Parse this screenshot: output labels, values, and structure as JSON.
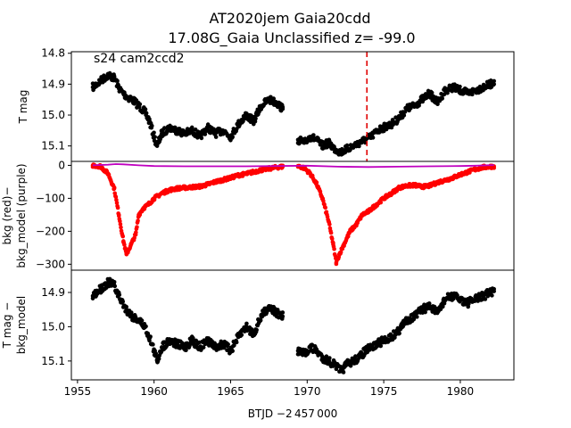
{
  "title_line1": "AT2020jem  Gaia20cdd",
  "title_line2": "17.08G_Gaia Unclassified z= -99.0",
  "xlabel": "BTJD −2 457 000",
  "colors": {
    "points": "#000000",
    "bkg": "#ff0000",
    "bkg_model": "#bf00bf",
    "marker_line": "#e00000"
  },
  "chart_data": [
    {
      "type": "scatter",
      "panel": "top",
      "annotation": "s24 cam2ccd2",
      "ylabel": "T mag",
      "y_inverted": true,
      "xlim": [
        1954.6,
        1983.5
      ],
      "ylim": [
        14.795,
        15.15
      ],
      "yticks": [
        14.8,
        14.9,
        15.0,
        15.1
      ],
      "ytick_labels": [
        "14.8",
        "14.9",
        "15.0",
        "15.1"
      ],
      "vline_x": 1973.9,
      "series": [
        {
          "style": "black dots",
          "segments": [
            {
              "x": [
                1956.0,
                1956.5,
                1957.0,
                1957.4,
                1957.8,
                1958.2,
                1958.6,
                1959.0,
                1959.4,
                1959.7,
                1960.0,
                1960.2,
                1960.5,
                1961.0,
                1961.5,
                1962.0,
                1962.5,
                1963.0,
                1963.5,
                1964.0,
                1964.5,
                1965.0,
                1965.5,
                1966.0,
                1966.5,
                1967.0,
                1967.5,
                1968.0,
                1968.4
              ],
              "y": [
                14.91,
                14.89,
                14.87,
                14.88,
                14.92,
                14.94,
                14.95,
                14.97,
                14.99,
                15.02,
                15.07,
                15.1,
                15.06,
                15.04,
                15.05,
                15.06,
                15.05,
                15.07,
                15.04,
                15.06,
                15.05,
                15.07,
                15.03,
                15.0,
                15.02,
                14.97,
                14.95,
                14.96,
                14.98
              ]
            },
            {
              "x": [
                1969.4,
                1969.8,
                1970.2,
                1970.6,
                1971.0,
                1971.4,
                1971.8,
                1972.2,
                1972.6,
                1973.0,
                1973.4,
                1973.8,
                1974.2,
                1974.6,
                1975.0,
                1975.5,
                1976.0,
                1976.5,
                1977.0,
                1977.5,
                1978.0,
                1978.5,
                1979.0,
                1979.5,
                1980.0,
                1980.5,
                1981.0,
                1981.5,
                1982.0,
                1982.2
              ],
              "y": [
                15.08,
                15.09,
                15.07,
                15.08,
                15.1,
                15.09,
                15.11,
                15.12,
                15.11,
                15.1,
                15.09,
                15.08,
                15.07,
                15.05,
                15.04,
                15.03,
                15.01,
                14.98,
                14.97,
                14.95,
                14.93,
                14.96,
                14.92,
                14.91,
                14.92,
                14.93,
                14.92,
                14.91,
                14.9,
                14.89
              ]
            }
          ]
        }
      ]
    },
    {
      "type": "scatter",
      "panel": "middle",
      "ylabel": "bkg (red)−\nbkg_model (purple)",
      "xlim": [
        1954.6,
        1983.5
      ],
      "ylim": [
        -318,
        12
      ],
      "yticks": [
        0,
        -100,
        -200,
        -300
      ],
      "ytick_labels": [
        "0",
        "−100",
        "−200",
        "−300"
      ],
      "series": [
        {
          "style": "red dots",
          "segments": [
            {
              "x": [
                1956.0,
                1956.5,
                1957.0,
                1957.4,
                1957.7,
                1958.0,
                1958.2,
                1958.5,
                1958.8,
                1959.0,
                1959.3,
                1959.6,
                1960.0,
                1960.5,
                1961.0,
                1961.5,
                1962.0,
                1962.5,
                1963.0,
                1963.5,
                1964.0,
                1964.5,
                1965.0,
                1965.5,
                1966.0,
                1966.5,
                1967.0,
                1967.5,
                1968.0,
                1968.4
              ],
              "y": [
                0,
                -3,
                -25,
                -70,
                -150,
                -230,
                -270,
                -240,
                -210,
                -150,
                -130,
                -120,
                -100,
                -85,
                -75,
                -70,
                -68,
                -66,
                -64,
                -58,
                -50,
                -44,
                -38,
                -30,
                -26,
                -20,
                -14,
                -10,
                -6,
                -4
              ]
            },
            {
              "x": [
                1969.4,
                1969.8,
                1970.2,
                1970.6,
                1971.0,
                1971.4,
                1971.7,
                1971.9,
                1972.1,
                1972.4,
                1972.8,
                1973.2,
                1973.6,
                1974.0,
                1974.5,
                1975.0,
                1975.5,
                1976.0,
                1976.5,
                1977.0,
                1977.5,
                1978.0,
                1978.5,
                1979.0,
                1979.5,
                1980.0,
                1980.5,
                1981.0,
                1981.5,
                1982.2
              ],
              "y": [
                -2,
                -8,
                -25,
                -55,
                -100,
                -170,
                -240,
                -295,
                -270,
                -240,
                -200,
                -180,
                -150,
                -140,
                -120,
                -100,
                -85,
                -68,
                -62,
                -60,
                -65,
                -62,
                -52,
                -45,
                -38,
                -28,
                -20,
                -12,
                -6,
                -3
              ]
            }
          ]
        },
        {
          "style": "purple line",
          "x": [
            1956.0,
            1957.0,
            1957.5,
            1958.0,
            1959.0,
            1960.0,
            1962.0,
            1964.0,
            1966.0,
            1968.0,
            1970.0,
            1972.0,
            1974.0,
            1976.0,
            1978.0,
            1980.0,
            1981.0,
            1982.2
          ],
          "y": [
            0,
            2,
            4,
            3,
            0,
            -2,
            -3,
            -3,
            -3,
            -2,
            -1,
            -4,
            -5,
            -4,
            -3,
            -2,
            -1,
            1
          ]
        }
      ]
    },
    {
      "type": "scatter",
      "panel": "bottom",
      "ylabel": "T mag −\nbkg_model",
      "y_inverted": true,
      "xlim": [
        1954.6,
        1983.5
      ],
      "ylim": [
        14.835,
        15.155
      ],
      "yticks": [
        14.9,
        15.0,
        15.1
      ],
      "ytick_labels": [
        "14.9",
        "15.0",
        "15.1"
      ],
      "xticks": [
        1955,
        1960,
        1965,
        1970,
        1975,
        1980
      ],
      "xtick_labels": [
        "1955",
        "1960",
        "1965",
        "1970",
        "1975",
        "1980"
      ],
      "series": [
        {
          "style": "black dots",
          "segments": [
            {
              "x": [
                1956.0,
                1956.5,
                1957.0,
                1957.4,
                1957.8,
                1958.2,
                1958.6,
                1959.0,
                1959.4,
                1959.7,
                1960.0,
                1960.2,
                1960.5,
                1961.0,
                1961.5,
                1962.0,
                1962.5,
                1963.0,
                1963.5,
                1964.0,
                1964.5,
                1965.0,
                1965.5,
                1966.0,
                1966.5,
                1967.0,
                1967.5,
                1968.0,
                1968.4
              ],
              "y": [
                14.91,
                14.89,
                14.87,
                14.88,
                14.92,
                14.95,
                14.97,
                14.98,
                15.0,
                15.03,
                15.07,
                15.1,
                15.06,
                15.04,
                15.05,
                15.06,
                15.04,
                15.06,
                15.04,
                15.06,
                15.05,
                15.07,
                15.03,
                15.0,
                15.02,
                14.97,
                14.94,
                14.96,
                14.97
              ]
            },
            {
              "x": [
                1969.4,
                1969.8,
                1970.2,
                1970.6,
                1971.0,
                1971.4,
                1971.8,
                1972.2,
                1972.6,
                1973.0,
                1973.4,
                1973.8,
                1974.2,
                1974.6,
                1975.0,
                1975.5,
                1976.0,
                1976.5,
                1977.0,
                1977.5,
                1978.0,
                1978.5,
                1979.0,
                1979.5,
                1980.0,
                1980.5,
                1981.0,
                1981.5,
                1982.0,
                1982.2
              ],
              "y": [
                15.07,
                15.08,
                15.06,
                15.07,
                15.09,
                15.1,
                15.11,
                15.13,
                15.11,
                15.1,
                15.09,
                15.07,
                15.06,
                15.05,
                15.04,
                15.03,
                15.01,
                14.98,
                14.97,
                14.95,
                14.94,
                14.96,
                14.92,
                14.91,
                14.92,
                14.93,
                14.92,
                14.91,
                14.9,
                14.89
              ]
            }
          ]
        }
      ]
    }
  ]
}
